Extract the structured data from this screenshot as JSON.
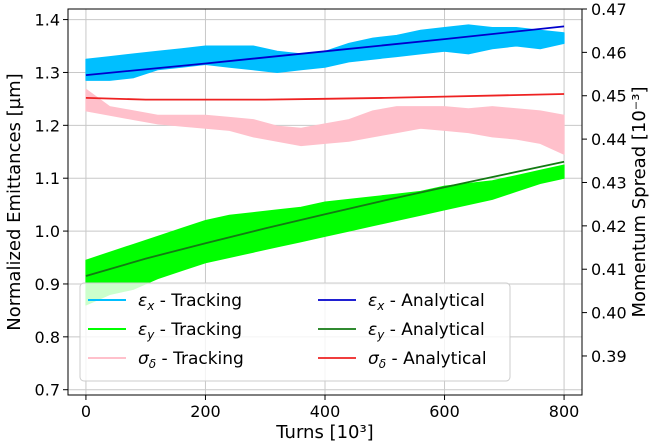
{
  "chart_data": {
    "type": "line",
    "xlabel": "Turns [10³]",
    "ylabel_left": "Normalized Emittances [µm]",
    "ylabel_right": "Momentum Spread [10⁻³]",
    "xlim": [
      -30,
      830
    ],
    "ylim_left": [
      0.69,
      1.42
    ],
    "ylim_right": [
      0.381,
      0.47
    ],
    "xticks": [
      0,
      200,
      400,
      600,
      800
    ],
    "yticks_left": [
      0.7,
      0.8,
      0.9,
      1.0,
      1.1,
      1.2,
      1.3,
      1.4
    ],
    "yticks_right": [
      0.39,
      0.4,
      0.41,
      0.42,
      0.43,
      0.44,
      0.45,
      0.46,
      0.47
    ],
    "grid": true,
    "legend_position": "lower-left",
    "series": [
      {
        "name": "εx - Tracking",
        "sym": "ε",
        "sub": "x",
        "suffix": " - Tracking",
        "axis": "left",
        "kind": "band",
        "color": "#00bfff",
        "x": [
          0,
          40,
          80,
          120,
          160,
          200,
          240,
          280,
          320,
          360,
          400,
          440,
          480,
          520,
          560,
          600,
          640,
          680,
          720,
          760,
          800
        ],
        "upper": [
          1.325,
          1.33,
          1.335,
          1.34,
          1.345,
          1.35,
          1.35,
          1.35,
          1.34,
          1.335,
          1.34,
          1.355,
          1.365,
          1.37,
          1.38,
          1.385,
          1.39,
          1.385,
          1.385,
          1.38,
          1.375
        ],
        "lower": [
          1.285,
          1.285,
          1.29,
          1.305,
          1.31,
          1.315,
          1.31,
          1.305,
          1.3,
          1.305,
          1.31,
          1.32,
          1.325,
          1.33,
          1.335,
          1.34,
          1.335,
          1.345,
          1.35,
          1.345,
          1.355
        ]
      },
      {
        "name": "εy - Tracking",
        "sym": "ε",
        "sub": "y",
        "suffix": " - Tracking",
        "axis": "left",
        "kind": "band",
        "color": "#00ff00",
        "x": [
          0,
          40,
          80,
          120,
          160,
          200,
          240,
          280,
          320,
          360,
          400,
          440,
          480,
          520,
          560,
          600,
          640,
          680,
          720,
          760,
          800
        ],
        "upper": [
          0.945,
          0.96,
          0.975,
          0.99,
          1.005,
          1.02,
          1.03,
          1.035,
          1.04,
          1.045,
          1.055,
          1.06,
          1.065,
          1.07,
          1.075,
          1.085,
          1.09,
          1.095,
          1.105,
          1.115,
          1.125
        ],
        "lower": [
          0.86,
          0.88,
          0.89,
          0.91,
          0.925,
          0.94,
          0.95,
          0.96,
          0.97,
          0.98,
          0.99,
          1.0,
          1.01,
          1.02,
          1.03,
          1.04,
          1.05,
          1.06,
          1.075,
          1.09,
          1.1
        ]
      },
      {
        "name": "σδ - Tracking",
        "sym": "σ",
        "sub": "δ",
        "suffix": " - Tracking",
        "axis": "right",
        "kind": "band",
        "color": "#ffc0cb",
        "x": [
          0,
          40,
          80,
          120,
          160,
          200,
          240,
          280,
          320,
          360,
          400,
          440,
          480,
          520,
          560,
          600,
          640,
          680,
          720,
          760,
          800
        ],
        "upper": [
          0.4515,
          0.4475,
          0.4465,
          0.4455,
          0.4455,
          0.4455,
          0.445,
          0.4445,
          0.443,
          0.4425,
          0.4435,
          0.4445,
          0.4465,
          0.4475,
          0.4475,
          0.4475,
          0.447,
          0.4475,
          0.447,
          0.4465,
          0.4455
        ],
        "lower": [
          0.4465,
          0.4455,
          0.4445,
          0.4435,
          0.443,
          0.4425,
          0.442,
          0.4405,
          0.4395,
          0.4385,
          0.439,
          0.4395,
          0.4405,
          0.4415,
          0.4425,
          0.442,
          0.4415,
          0.4405,
          0.44,
          0.439,
          0.4365
        ]
      },
      {
        "name": "εx - Analytical",
        "sym": "ε",
        "sub": "x",
        "suffix": " - Analytical",
        "axis": "left",
        "kind": "line",
        "color": "#0000cc",
        "x": [
          0,
          200,
          400,
          600,
          800
        ],
        "values": [
          1.295,
          1.317,
          1.34,
          1.363,
          1.387
        ]
      },
      {
        "name": "εy - Analytical",
        "sym": "ε",
        "sub": "y",
        "suffix": " - Analytical",
        "axis": "left",
        "kind": "line",
        "color": "#137a13",
        "x": [
          0,
          100,
          200,
          300,
          400,
          500,
          600,
          700,
          800
        ],
        "values": [
          0.915,
          0.948,
          0.977,
          1.005,
          1.032,
          1.058,
          1.083,
          1.107,
          1.131
        ]
      },
      {
        "name": "σδ - Analytical",
        "sym": "σ",
        "sub": "δ",
        "suffix": " - Analytical",
        "axis": "right",
        "kind": "line",
        "color": "#ee2222",
        "x": [
          0,
          100,
          200,
          300,
          400,
          500,
          600,
          700,
          800
        ],
        "values": [
          0.4495,
          0.4491,
          0.4491,
          0.4491,
          0.4493,
          0.4495,
          0.4498,
          0.4501,
          0.4504
        ]
      }
    ]
  }
}
